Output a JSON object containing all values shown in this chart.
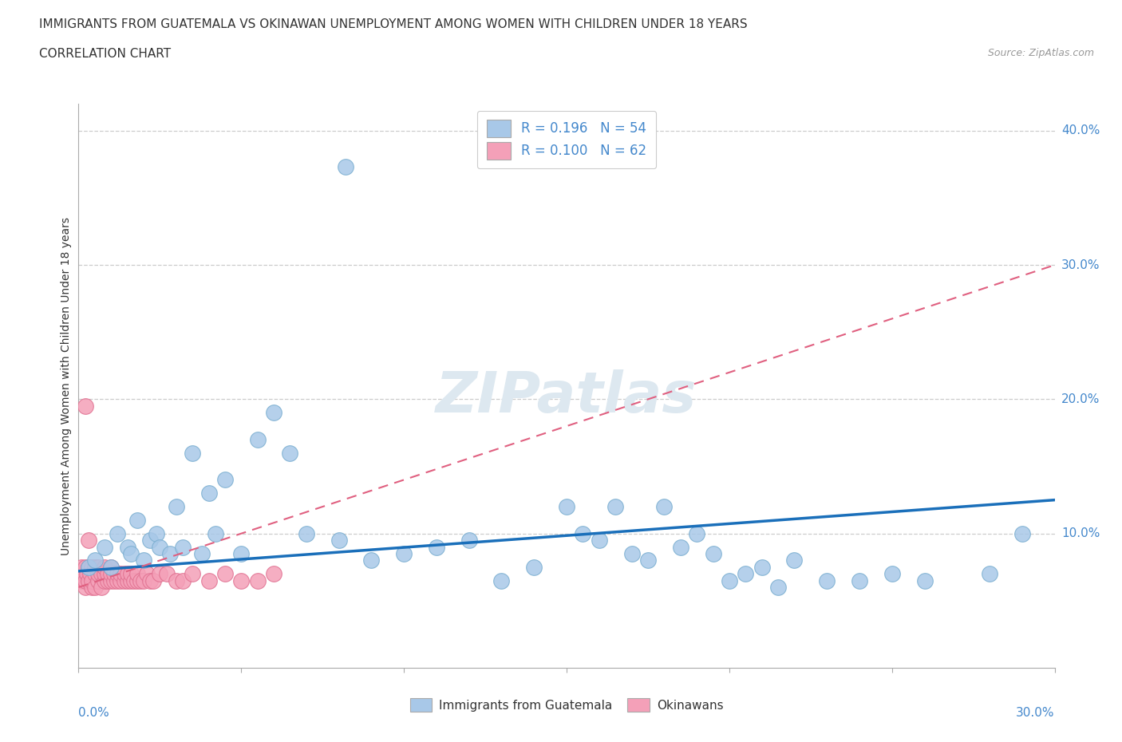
{
  "title": "IMMIGRANTS FROM GUATEMALA VS OKINAWAN UNEMPLOYMENT AMONG WOMEN WITH CHILDREN UNDER 18 YEARS",
  "subtitle": "CORRELATION CHART",
  "source": "Source: ZipAtlas.com",
  "xlabel_bottom_left": "0.0%",
  "xlabel_bottom_right": "30.0%",
  "ylabel": "Unemployment Among Women with Children Under 18 years",
  "legend_label1": "Immigrants from Guatemala",
  "legend_label2": "Okinawans",
  "blue_color": "#a8c8e8",
  "blue_edge_color": "#7aaed0",
  "pink_color": "#f4a0b8",
  "pink_edge_color": "#e07090",
  "blue_line_color": "#1a6fba",
  "pink_line_color": "#e06080",
  "grid_color": "#cccccc",
  "tick_label_color": "#4488cc",
  "watermark_color": "#dde8f0",
  "xlim": [
    0.0,
    0.3
  ],
  "ylim": [
    0.0,
    0.42
  ],
  "ytick_vals": [
    0.1,
    0.2,
    0.3,
    0.4
  ],
  "ytick_labels": [
    "10.0%",
    "20.0%",
    "30.0%",
    "40.0%"
  ],
  "blue_x": [
    0.003,
    0.005,
    0.008,
    0.01,
    0.012,
    0.015,
    0.016,
    0.018,
    0.02,
    0.022,
    0.024,
    0.025,
    0.028,
    0.03,
    0.032,
    0.035,
    0.038,
    0.04,
    0.042,
    0.045,
    0.05,
    0.055,
    0.06,
    0.065,
    0.07,
    0.08,
    0.09,
    0.1,
    0.11,
    0.12,
    0.13,
    0.14,
    0.15,
    0.155,
    0.16,
    0.165,
    0.17,
    0.175,
    0.18,
    0.185,
    0.19,
    0.195,
    0.2,
    0.205,
    0.21,
    0.215,
    0.22,
    0.23,
    0.24,
    0.25,
    0.26,
    0.28,
    0.29,
    0.082
  ],
  "blue_y": [
    0.075,
    0.08,
    0.09,
    0.075,
    0.1,
    0.09,
    0.085,
    0.11,
    0.08,
    0.095,
    0.1,
    0.09,
    0.085,
    0.12,
    0.09,
    0.16,
    0.085,
    0.13,
    0.1,
    0.14,
    0.085,
    0.17,
    0.19,
    0.16,
    0.1,
    0.095,
    0.08,
    0.085,
    0.09,
    0.095,
    0.065,
    0.075,
    0.12,
    0.1,
    0.095,
    0.12,
    0.085,
    0.08,
    0.12,
    0.09,
    0.1,
    0.085,
    0.065,
    0.07,
    0.075,
    0.06,
    0.08,
    0.065,
    0.065,
    0.07,
    0.065,
    0.07,
    0.1,
    0.373
  ],
  "pink_x": [
    0.0005,
    0.001,
    0.001,
    0.0015,
    0.002,
    0.002,
    0.002,
    0.0025,
    0.003,
    0.003,
    0.0035,
    0.004,
    0.004,
    0.004,
    0.005,
    0.005,
    0.005,
    0.006,
    0.006,
    0.006,
    0.007,
    0.007,
    0.008,
    0.008,
    0.008,
    0.009,
    0.009,
    0.01,
    0.01,
    0.01,
    0.011,
    0.011,
    0.012,
    0.012,
    0.013,
    0.013,
    0.014,
    0.014,
    0.015,
    0.015,
    0.016,
    0.016,
    0.017,
    0.018,
    0.018,
    0.019,
    0.02,
    0.021,
    0.022,
    0.023,
    0.025,
    0.027,
    0.03,
    0.032,
    0.035,
    0.04,
    0.045,
    0.05,
    0.055,
    0.06,
    0.002,
    0.003
  ],
  "pink_y": [
    0.07,
    0.065,
    0.075,
    0.07,
    0.06,
    0.075,
    0.065,
    0.07,
    0.065,
    0.075,
    0.07,
    0.06,
    0.075,
    0.065,
    0.07,
    0.06,
    0.075,
    0.065,
    0.07,
    0.075,
    0.06,
    0.07,
    0.065,
    0.07,
    0.075,
    0.065,
    0.07,
    0.065,
    0.07,
    0.075,
    0.065,
    0.07,
    0.065,
    0.07,
    0.065,
    0.07,
    0.065,
    0.07,
    0.065,
    0.07,
    0.065,
    0.07,
    0.065,
    0.065,
    0.07,
    0.065,
    0.065,
    0.07,
    0.065,
    0.065,
    0.07,
    0.07,
    0.065,
    0.065,
    0.07,
    0.065,
    0.07,
    0.065,
    0.065,
    0.07,
    0.195,
    0.095
  ],
  "blue_line_x": [
    0.0,
    0.3
  ],
  "blue_line_y": [
    0.072,
    0.125
  ],
  "pink_line_x": [
    0.0,
    0.3
  ],
  "pink_line_y": [
    0.06,
    0.3
  ]
}
